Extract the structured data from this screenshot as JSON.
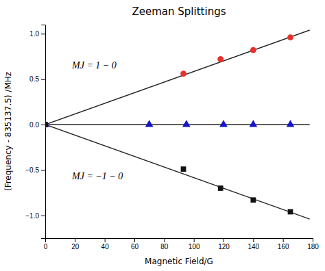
{
  "chart_data": {
    "type": "scatter",
    "title": "Zeeman Splittings",
    "xlabel": "Magnetic Field/G",
    "ylabel": "(Frequency - 835137.5) /MHz",
    "xlim": [
      0,
      180
    ],
    "ylim": [
      -1.25,
      1.1
    ],
    "xticks": [
      0,
      20,
      40,
      60,
      80,
      100,
      120,
      140,
      160,
      180
    ],
    "yticks": [
      {
        "value": -1.0,
        "label": "−1.0"
      },
      {
        "value": -0.5,
        "label": "−0.5"
      },
      {
        "value": 0.0,
        "label": "0.0"
      },
      {
        "value": 0.5,
        "label": "0.5"
      },
      {
        "value": 1.0,
        "label": "1.0"
      }
    ],
    "series": [
      {
        "type": "line",
        "color": "#2a2a2a",
        "x": [
          0,
          178
        ],
        "values": [
          0.0,
          1.04
        ]
      },
      {
        "type": "line",
        "color": "#2a2a2a",
        "x": [
          0,
          178
        ],
        "values": [
          0.0,
          0.0
        ]
      },
      {
        "type": "line",
        "color": "#2a2a2a",
        "x": [
          0,
          178
        ],
        "values": [
          0.0,
          -1.04
        ]
      },
      {
        "type": "scatter",
        "color": "#e8302a",
        "marker": "circle",
        "x": [
          0,
          93,
          118,
          140,
          165
        ],
        "values": [
          0.0,
          0.56,
          0.72,
          0.82,
          0.96
        ]
      },
      {
        "type": "scatter",
        "color": "#1414cc",
        "marker": "triangle",
        "x": [
          0,
          70,
          95,
          120,
          140,
          165
        ],
        "values": [
          0.0,
          0.0,
          0.0,
          0.0,
          0.0,
          0.0
        ]
      },
      {
        "type": "scatter",
        "color": "#111111",
        "marker": "square",
        "x": [
          0,
          93,
          118,
          140,
          165
        ],
        "values": [
          0.0,
          -0.49,
          -0.7,
          -0.83,
          -0.96
        ]
      }
    ],
    "annotations": [
      {
        "text": "MJ = 1 − 0",
        "x": 18,
        "y": 0.62
      },
      {
        "text": "MJ = −1 − 0",
        "x": 18,
        "y": -0.6
      }
    ],
    "grid": false
  }
}
